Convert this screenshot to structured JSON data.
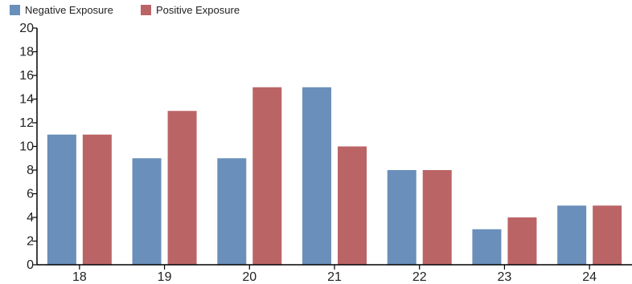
{
  "chart_data": {
    "type": "bar",
    "categories": [
      "18",
      "19",
      "20",
      "21",
      "22",
      "23",
      "24"
    ],
    "series": [
      {
        "name": "Negative Exposure",
        "values": [
          11,
          9,
          9,
          15,
          8,
          3,
          5
        ],
        "color": "#6a8fba"
      },
      {
        "name": "Positive Exposure",
        "values": [
          11,
          13,
          15,
          10,
          8,
          4,
          5
        ],
        "color": "#bb6466"
      }
    ],
    "ylim": [
      0,
      20
    ],
    "yticks": [
      "0",
      "2",
      "4",
      "6",
      "8",
      "10",
      "12",
      "14",
      "16",
      "18",
      "20"
    ],
    "legend_position": "top-left",
    "grid": false
  }
}
